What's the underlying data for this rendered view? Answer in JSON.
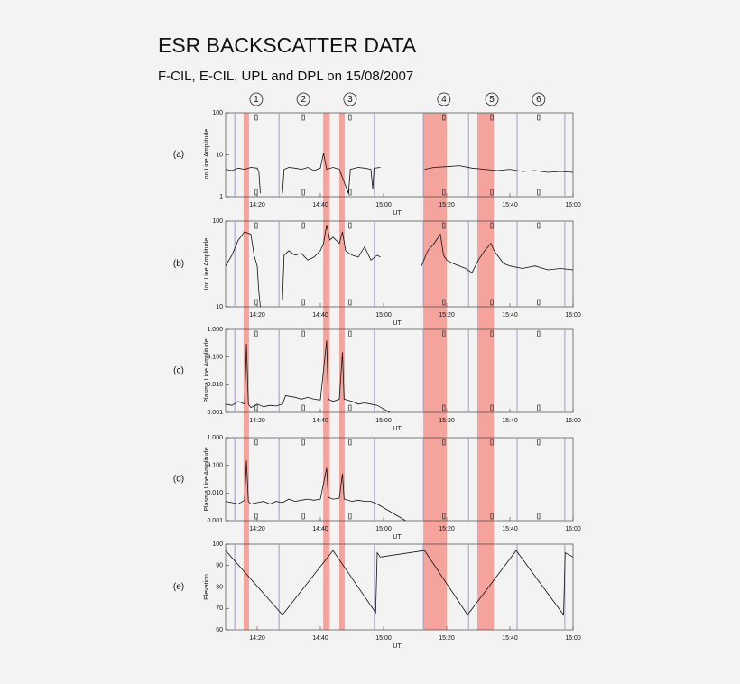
{
  "title": "ESR BACKSCATTER DATA",
  "subtitle": "F-CIL, E-CIL, UPL and DPL on 15/08/2007",
  "events": [
    {
      "label": "1",
      "time": 19.7
    },
    {
      "label": "2",
      "time": 34.6
    },
    {
      "label": "3",
      "time": 49.4
    },
    {
      "label": "4",
      "time": 79.1
    },
    {
      "label": "5",
      "time": 94.3
    },
    {
      "label": "6",
      "time": 109.1
    }
  ],
  "shaded_intervals": [
    [
      15.7,
      17.4
    ],
    [
      40.9,
      42.9
    ],
    [
      46,
      47.7
    ],
    [
      72.6,
      80
    ],
    [
      89.7,
      94.9
    ]
  ],
  "scan_boundaries": [
    12.9,
    26.9,
    57.1,
    72.6,
    86.9,
    102.3,
    117.4
  ],
  "chart_data": [
    {
      "type": "line",
      "label": "(a)",
      "ylabel": "Ion Line Amplitude",
      "xlabel": "UT",
      "log_y": true,
      "xlim": [
        10,
        120
      ],
      "xticks": [
        {
          "value": 20,
          "label": "14:20"
        },
        {
          "value": 40,
          "label": "14:40"
        },
        {
          "value": 60,
          "label": "15:00"
        },
        {
          "value": 80,
          "label": "15:20"
        },
        {
          "value": 100,
          "label": "15:40"
        },
        {
          "value": 120,
          "label": "16:00"
        }
      ],
      "ylim": [
        1,
        100
      ],
      "yticks": [
        1,
        10,
        100
      ],
      "x": [
        10,
        12,
        14,
        16,
        18,
        20,
        20.5,
        21,
        24,
        28,
        28.5,
        30,
        32,
        34,
        36,
        38,
        40,
        41,
        42,
        44,
        46,
        48.9,
        49.5,
        52,
        54,
        56,
        56.6,
        57,
        59,
        66,
        73,
        76,
        80,
        84,
        88,
        92,
        96,
        100,
        104,
        108,
        112,
        116,
        120
      ],
      "series": [
        {
          "color": "#111111",
          "values": [
            4.5,
            4.2,
            4.8,
            4.5,
            5,
            4.8,
            4,
            1.2,
            null,
            1.2,
            4.5,
            5,
            4.8,
            4.5,
            5,
            4.2,
            4.8,
            11,
            4.5,
            5,
            4.5,
            1.2,
            4.5,
            5,
            4.8,
            4.5,
            1.5,
            4.8,
            5,
            null,
            4.5,
            5,
            5.2,
            5.5,
            4.8,
            4.5,
            4.2,
            4.5,
            4,
            4.2,
            3.8,
            4,
            3.8
          ]
        }
      ]
    },
    {
      "type": "line",
      "label": "(b)",
      "ylabel": "Ion Line Amplitude",
      "xlabel": "UT",
      "log_y": true,
      "xlim": [
        10,
        120
      ],
      "xticks": [
        {
          "value": 20,
          "label": "14:20"
        },
        {
          "value": 40,
          "label": "14:40"
        },
        {
          "value": 60,
          "label": "15:00"
        },
        {
          "value": 80,
          "label": "15:20"
        },
        {
          "value": 100,
          "label": "15:40"
        },
        {
          "value": 120,
          "label": "16:00"
        }
      ],
      "ylim": [
        10,
        100
      ],
      "yticks": [
        10,
        100
      ],
      "x": [
        10,
        12,
        14,
        16,
        18,
        19,
        20,
        20.5,
        21,
        24,
        28,
        28.5,
        30,
        32,
        34,
        36,
        38,
        40,
        41,
        42,
        43,
        44,
        46,
        47,
        48,
        50,
        52,
        54,
        56,
        58,
        59,
        66,
        72,
        74,
        76,
        78,
        79,
        80,
        82,
        84,
        86,
        88,
        90,
        92,
        94,
        95,
        98,
        100,
        104,
        108,
        112,
        116,
        120
      ],
      "series": [
        {
          "color": "#111111",
          "values": [
            30,
            40,
            60,
            75,
            70,
            40,
            30,
            15,
            10,
            null,
            12,
            40,
            45,
            40,
            42,
            35,
            38,
            45,
            55,
            90,
            60,
            65,
            55,
            75,
            45,
            40,
            38,
            50,
            35,
            40,
            38,
            null,
            30,
            45,
            55,
            70,
            40,
            35,
            32,
            30,
            28,
            25,
            35,
            45,
            55,
            45,
            32,
            30,
            28,
            30,
            27,
            28,
            27
          ]
        }
      ]
    },
    {
      "type": "line",
      "label": "(c)",
      "ylabel": "Plasma Line Amplitude",
      "xlabel": "UT",
      "log_y": true,
      "xlim": [
        10,
        120
      ],
      "xticks": [
        {
          "value": 20,
          "label": "14:20"
        },
        {
          "value": 40,
          "label": "14:40"
        },
        {
          "value": 60,
          "label": "15:00"
        },
        {
          "value": 80,
          "label": "15:20"
        },
        {
          "value": 100,
          "label": "15:40"
        },
        {
          "value": 120,
          "label": "16:00"
        }
      ],
      "ylim": [
        0.001,
        1
      ],
      "yticks": [
        0.001,
        {
          "value": 0.01,
          "label": "0.010"
        },
        {
          "value": 0.1,
          "label": "0.100"
        },
        {
          "value": 1,
          "label": "1.000"
        }
      ],
      "x": [
        10,
        12,
        14,
        16,
        16.6,
        17.2,
        18,
        20,
        22,
        24,
        26,
        28,
        29,
        32,
        34,
        36,
        38,
        40,
        42,
        42.5,
        44,
        46,
        47,
        47.5,
        50,
        52,
        54,
        56,
        58,
        62
      ],
      "series": [
        {
          "color": "#111111",
          "values": [
            0.002,
            0.0018,
            0.0025,
            0.002,
            0.3,
            0.002,
            0.0015,
            0.002,
            0.0016,
            0.0018,
            0.0017,
            0.002,
            0.004,
            0.0035,
            0.003,
            0.0035,
            0.003,
            0.0028,
            0.4,
            0.003,
            0.0025,
            0.003,
            0.15,
            0.003,
            0.0025,
            0.002,
            0.0022,
            0.002,
            0.0018,
            0.001
          ]
        }
      ]
    },
    {
      "type": "line",
      "label": "(d)",
      "ylabel": "Plasma Line Amplitude",
      "xlabel": "UT",
      "log_y": true,
      "xlim": [
        10,
        120
      ],
      "xticks": [
        {
          "value": 20,
          "label": "14:20"
        },
        {
          "value": 40,
          "label": "14:40"
        },
        {
          "value": 60,
          "label": "15:00"
        },
        {
          "value": 80,
          "label": "15:20"
        },
        {
          "value": 100,
          "label": "15:40"
        },
        {
          "value": 120,
          "label": "16:00"
        }
      ],
      "ylim": [
        0.001,
        1
      ],
      "yticks": [
        0.001,
        {
          "value": 0.01,
          "label": "0.010"
        },
        {
          "value": 0.1,
          "label": "0.100"
        },
        {
          "value": 1,
          "label": "1.000"
        }
      ],
      "x": [
        10,
        12,
        14,
        16,
        16.6,
        17.2,
        18,
        20,
        22,
        24,
        26,
        28,
        30,
        32,
        34,
        36,
        38,
        40,
        42,
        42.5,
        44,
        46,
        47,
        47.5,
        50,
        52,
        54,
        56,
        58,
        67
      ],
      "series": [
        {
          "color": "#111111",
          "values": [
            0.005,
            0.0045,
            0.004,
            0.0055,
            0.15,
            0.005,
            0.004,
            0.0045,
            0.005,
            0.004,
            0.005,
            0.0045,
            0.006,
            0.005,
            0.0055,
            0.006,
            0.0055,
            0.006,
            0.08,
            0.007,
            0.006,
            0.0065,
            0.05,
            0.006,
            0.005,
            0.0055,
            0.005,
            0.005,
            0.004,
            0.001
          ]
        }
      ]
    },
    {
      "type": "line",
      "label": "(e)",
      "ylabel": "Elevation",
      "xlabel": "UT",
      "log_y": false,
      "xlim": [
        10,
        120
      ],
      "xticks": [
        {
          "value": 20,
          "label": "14:20"
        },
        {
          "value": 40,
          "label": "14:40"
        },
        {
          "value": 60,
          "label": "15:00"
        },
        {
          "value": 80,
          "label": "15:20"
        },
        {
          "value": 100,
          "label": "15:40"
        },
        {
          "value": 120,
          "label": "16:00"
        }
      ],
      "ylim": [
        60,
        100
      ],
      "yticks": [
        60,
        70,
        80,
        90,
        100
      ],
      "x": [
        10,
        28,
        44,
        57.5,
        58,
        59,
        73,
        86.6,
        102,
        117,
        117.5,
        120
      ],
      "series": [
        {
          "color": "#111111",
          "values": [
            97,
            67,
            97,
            68,
            96,
            94,
            97,
            67,
            97,
            67,
            96,
            94
          ]
        }
      ]
    }
  ]
}
